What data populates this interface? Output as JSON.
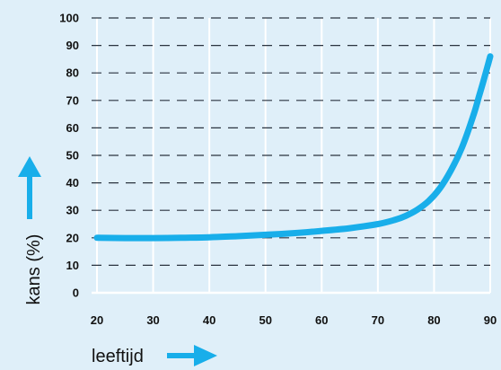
{
  "chart_data": {
    "type": "line",
    "title": "",
    "xlabel": "leeftijd",
    "ylabel": "kans (%)",
    "xlim": [
      20,
      90
    ],
    "ylim": [
      0,
      100
    ],
    "x_ticks": [
      "20",
      "30",
      "40",
      "50",
      "60",
      "70",
      "80",
      "90"
    ],
    "y_ticks": [
      "0",
      "10",
      "20",
      "30",
      "40",
      "50",
      "60",
      "70",
      "80",
      "90",
      "100"
    ],
    "grid": {
      "vertical": "solid white",
      "horizontal": "dashed dark"
    },
    "series": [
      {
        "name": "",
        "x": [
          20,
          25,
          30,
          35,
          40,
          45,
          50,
          55,
          60,
          65,
          70,
          73,
          75,
          77,
          79,
          81,
          83,
          85,
          87,
          88,
          89,
          90
        ],
        "values": [
          20,
          19.9,
          19.9,
          20,
          20.2,
          20.6,
          21.1,
          21.7,
          22.5,
          23.5,
          25,
          26.5,
          28,
          30.2,
          33.3,
          37.9,
          44.5,
          53,
          64.5,
          71.5,
          78.5,
          86
        ]
      }
    ],
    "colors": {
      "background": "#dfeff9",
      "line": "#18aeea",
      "grid_dashed": "#2b3440",
      "grid_vertical": "#ffffff",
      "axis": "#ffffff",
      "arrow": "#18aeea"
    }
  }
}
